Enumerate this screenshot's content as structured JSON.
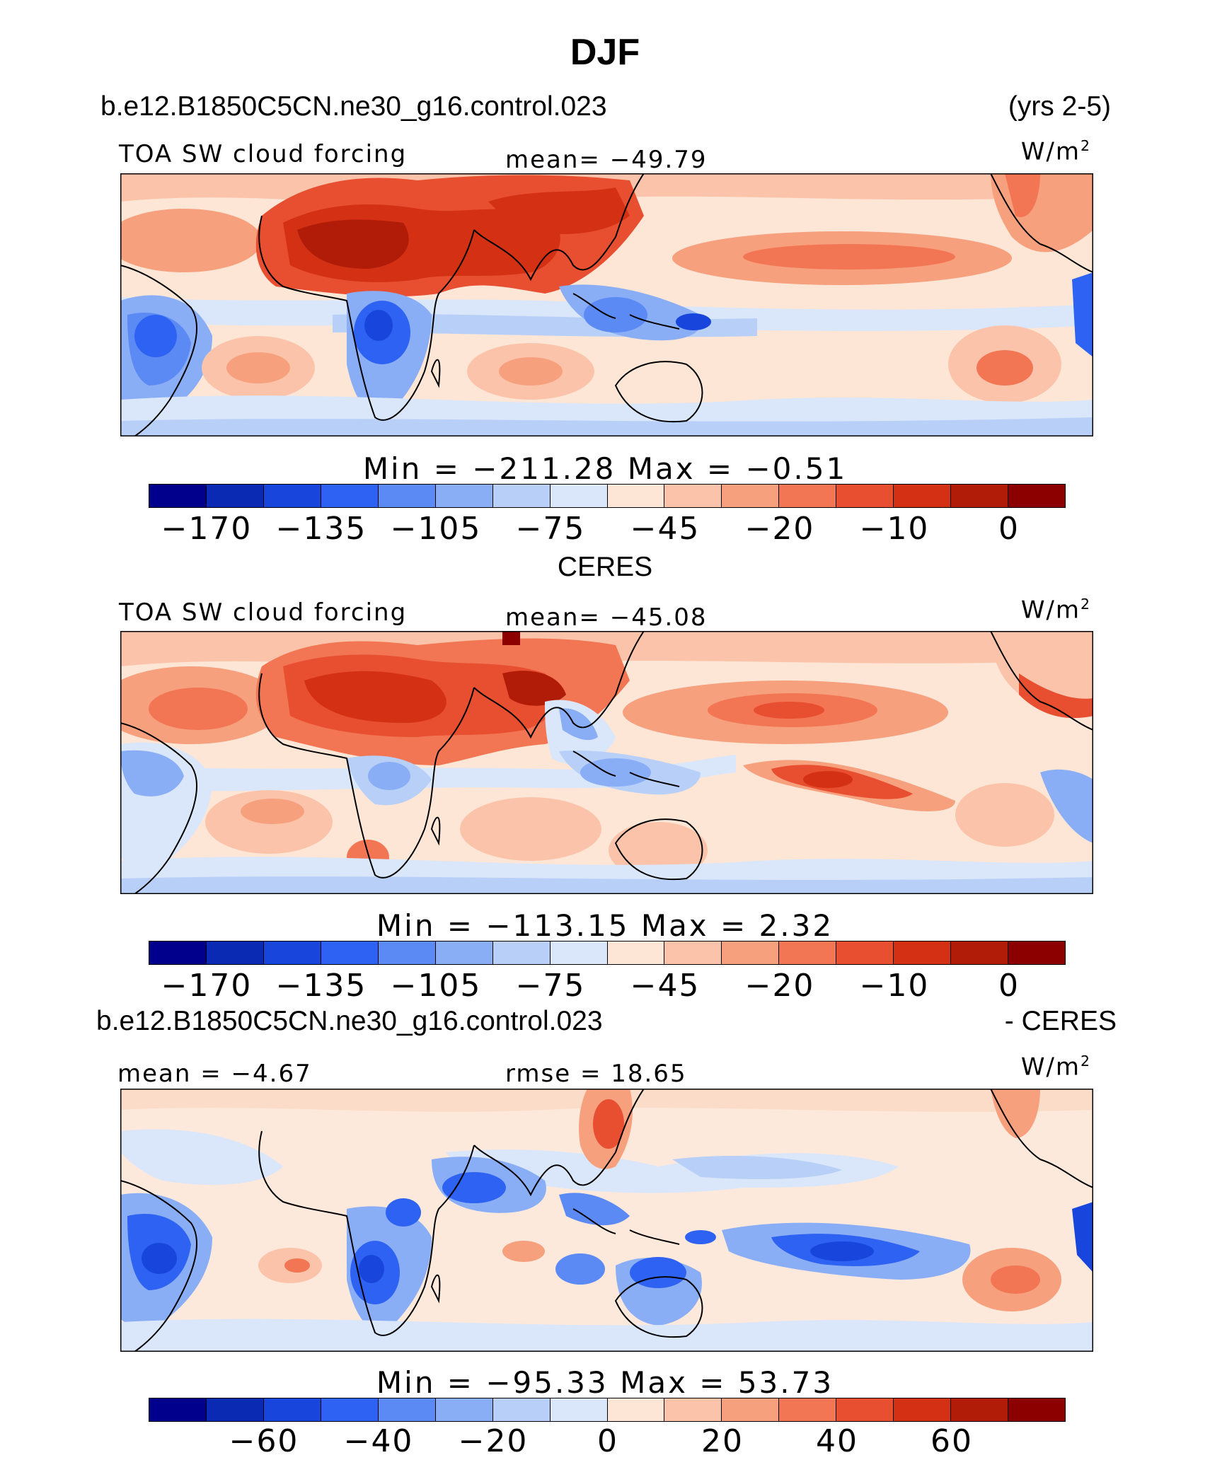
{
  "title": "DJF",
  "panels": [
    {
      "id": "model",
      "header_left": "b.e12.B1850C5CN.ne30_g16.control.023",
      "header_right": "(yrs 2-5)",
      "left_label": "TOA SW cloud forcing",
      "center_label": "mean= −49.79",
      "units": "W/m",
      "units_sup": "2",
      "minmax": "Min  =  −211.28  Max  =   −0.51",
      "colorbar_ticks": [
        "−170",
        "−135",
        "−105",
        "−75",
        "−45",
        "−20",
        "−10",
        "0"
      ]
    },
    {
      "id": "obs",
      "header_center": "CERES",
      "left_label": "TOA SW cloud forcing",
      "center_label": "mean= −45.08",
      "units": "W/m",
      "units_sup": "2",
      "minmax": "Min  =  −113.15  Max  =    2.32",
      "colorbar_ticks": [
        "−170",
        "−135",
        "−105",
        "−75",
        "−45",
        "−20",
        "−10",
        "0"
      ]
    },
    {
      "id": "diff",
      "header_left": "b.e12.B1850C5CN.ne30_g16.control.023",
      "header_right": "- CERES",
      "left_label": "mean =   −4.67",
      "center_label": "rmse =   18.65",
      "units": "W/m",
      "units_sup": "2",
      "minmax": "Min  =  −95.33  Max  =    53.73",
      "colorbar_ticks": [
        "−60",
        "−40",
        "−20",
        "0",
        "20",
        "40",
        "60"
      ]
    }
  ],
  "colors": {
    "palette": [
      "#00008c",
      "#0a2ab4",
      "#1846dc",
      "#2e62f2",
      "#5c8af4",
      "#8aaef6",
      "#b8cff8",
      "#dae6fa",
      "#fde6d6",
      "#fbc4aa",
      "#f7a07e",
      "#f27654",
      "#e84e30",
      "#d43014",
      "#b11c08",
      "#8c0000"
    ],
    "ocean_base": "#fde6d6",
    "diff_base": "#fde9dc"
  }
}
